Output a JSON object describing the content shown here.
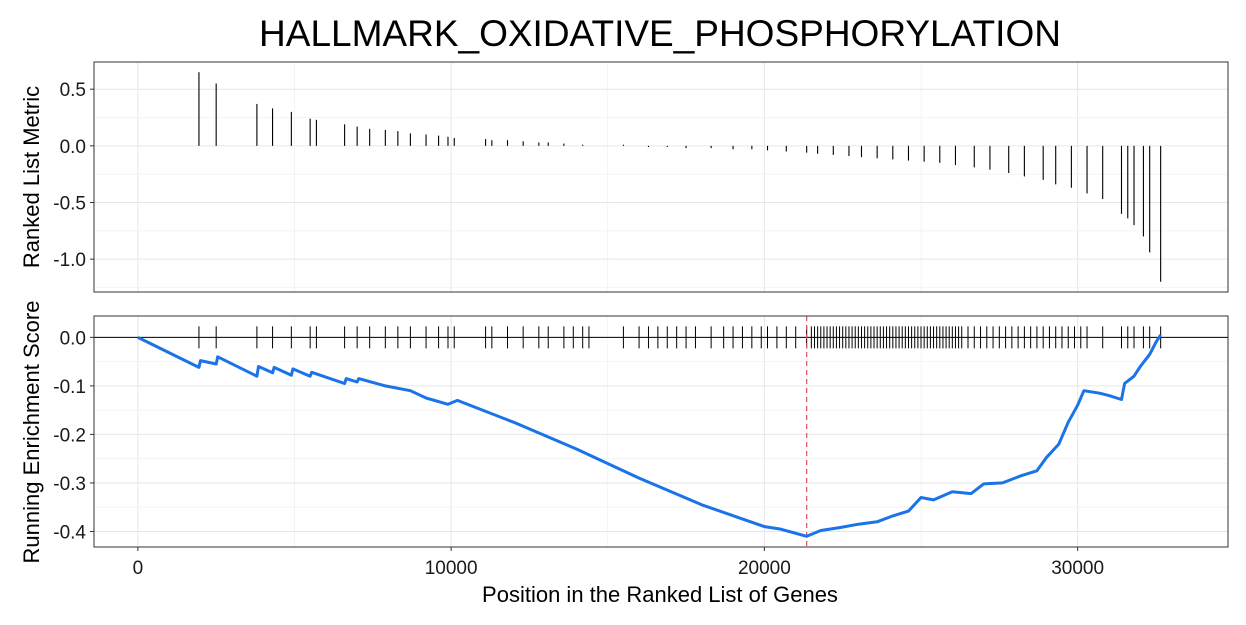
{
  "chart_data": {
    "type": "line",
    "title": "HALLMARK_OXIDATIVE_PHOSPHORYLATION",
    "xlabel": "Position in the Ranked List of Genes",
    "xlim": [
      -1400,
      34800
    ],
    "x_ticks": [
      0,
      10000,
      20000,
      30000
    ],
    "x_tick_labels": [
      "0",
      "10000",
      "20000",
      "30000"
    ],
    "peak_position": 21350,
    "colors": {
      "enrichment_line": "#1a73e8",
      "peak_line": "#d9534f",
      "hits": "#000000",
      "frame": "#333333"
    },
    "panels": [
      {
        "name": "ranked_list_metric",
        "ylabel": "Ranked List Metric",
        "ylim": [
          -1.29,
          0.74
        ],
        "y_ticks": [
          0.5,
          0.0,
          -0.5,
          -1.0
        ],
        "y_tick_labels": [
          "0.5",
          "0.0",
          "-0.5",
          "-1.0"
        ],
        "bars": [
          [
            1950,
            0.65
          ],
          [
            2500,
            0.55
          ],
          [
            3800,
            0.37
          ],
          [
            4300,
            0.33
          ],
          [
            4900,
            0.3
          ],
          [
            5500,
            0.24
          ],
          [
            5700,
            0.23
          ],
          [
            6600,
            0.19
          ],
          [
            7000,
            0.17
          ],
          [
            7400,
            0.15
          ],
          [
            7900,
            0.14
          ],
          [
            8300,
            0.13
          ],
          [
            8700,
            0.11
          ],
          [
            9200,
            0.1
          ],
          [
            9600,
            0.09
          ],
          [
            9900,
            0.08
          ],
          [
            10100,
            0.07
          ],
          [
            11100,
            0.06
          ],
          [
            11300,
            0.05
          ],
          [
            11800,
            0.05
          ],
          [
            12300,
            0.04
          ],
          [
            12800,
            0.03
          ],
          [
            13100,
            0.03
          ],
          [
            13600,
            0.02
          ],
          [
            14200,
            0.01
          ],
          [
            15500,
            0.01
          ],
          [
            16300,
            -0.01
          ],
          [
            16900,
            -0.01
          ],
          [
            17500,
            -0.02
          ],
          [
            18300,
            -0.02
          ],
          [
            19000,
            -0.03
          ],
          [
            19600,
            -0.03
          ],
          [
            20100,
            -0.04
          ],
          [
            20700,
            -0.05
          ],
          [
            21350,
            -0.06
          ],
          [
            21700,
            -0.07
          ],
          [
            22200,
            -0.08
          ],
          [
            22700,
            -0.09
          ],
          [
            23100,
            -0.1
          ],
          [
            23600,
            -0.11
          ],
          [
            24100,
            -0.12
          ],
          [
            24600,
            -0.13
          ],
          [
            25100,
            -0.14
          ],
          [
            25600,
            -0.15
          ],
          [
            26100,
            -0.17
          ],
          [
            26700,
            -0.19
          ],
          [
            27200,
            -0.21
          ],
          [
            27800,
            -0.24
          ],
          [
            28300,
            -0.27
          ],
          [
            28900,
            -0.3
          ],
          [
            29300,
            -0.34
          ],
          [
            29800,
            -0.37
          ],
          [
            30300,
            -0.42
          ],
          [
            30800,
            -0.47
          ],
          [
            31400,
            -0.6
          ],
          [
            31600,
            -0.64
          ],
          [
            31800,
            -0.7
          ],
          [
            32100,
            -0.8
          ],
          [
            32300,
            -0.94
          ],
          [
            32650,
            -1.2
          ]
        ]
      },
      {
        "name": "running_enrichment_score",
        "ylabel": "Running Enrichment Score",
        "ylim": [
          -0.432,
          0.044
        ],
        "y_ticks": [
          0.0,
          -0.1,
          -0.2,
          -0.3,
          -0.4
        ],
        "y_tick_labels": [
          "0.0",
          "-0.1",
          "-0.2",
          "-0.3",
          "-0.4"
        ],
        "line": [
          [
            0,
            0.0
          ],
          [
            1950,
            -0.062
          ],
          [
            2000,
            -0.048
          ],
          [
            2500,
            -0.055
          ],
          [
            2550,
            -0.04
          ],
          [
            3800,
            -0.08
          ],
          [
            3850,
            -0.06
          ],
          [
            4300,
            -0.073
          ],
          [
            4350,
            -0.062
          ],
          [
            4900,
            -0.078
          ],
          [
            4950,
            -0.065
          ],
          [
            5500,
            -0.08
          ],
          [
            5550,
            -0.072
          ],
          [
            6600,
            -0.095
          ],
          [
            6650,
            -0.085
          ],
          [
            7000,
            -0.092
          ],
          [
            7050,
            -0.085
          ],
          [
            7900,
            -0.1
          ],
          [
            8700,
            -0.11
          ],
          [
            9200,
            -0.125
          ],
          [
            9900,
            -0.138
          ],
          [
            10200,
            -0.13
          ],
          [
            12000,
            -0.175
          ],
          [
            14000,
            -0.23
          ],
          [
            16000,
            -0.29
          ],
          [
            18000,
            -0.345
          ],
          [
            20000,
            -0.39
          ],
          [
            20500,
            -0.395
          ],
          [
            21350,
            -0.41
          ],
          [
            21800,
            -0.398
          ],
          [
            22400,
            -0.392
          ],
          [
            23000,
            -0.385
          ],
          [
            23600,
            -0.38
          ],
          [
            24100,
            -0.368
          ],
          [
            24600,
            -0.358
          ],
          [
            25000,
            -0.33
          ],
          [
            25400,
            -0.335
          ],
          [
            26000,
            -0.318
          ],
          [
            26600,
            -0.322
          ],
          [
            27000,
            -0.302
          ],
          [
            27600,
            -0.3
          ],
          [
            28200,
            -0.285
          ],
          [
            28700,
            -0.275
          ],
          [
            29000,
            -0.248
          ],
          [
            29400,
            -0.22
          ],
          [
            29700,
            -0.175
          ],
          [
            30000,
            -0.14
          ],
          [
            30200,
            -0.11
          ],
          [
            30700,
            -0.115
          ],
          [
            31000,
            -0.12
          ],
          [
            31400,
            -0.128
          ],
          [
            31500,
            -0.095
          ],
          [
            31800,
            -0.08
          ],
          [
            32000,
            -0.06
          ],
          [
            32300,
            -0.035
          ],
          [
            32500,
            -0.01
          ],
          [
            32650,
            0.005
          ]
        ],
        "hits": [
          1950,
          2500,
          3800,
          4300,
          4900,
          5500,
          5700,
          6600,
          7000,
          7400,
          7900,
          8300,
          8700,
          9200,
          9600,
          9900,
          10100,
          11100,
          11300,
          11800,
          12300,
          12800,
          13100,
          13600,
          13900,
          14200,
          14400,
          15500,
          16000,
          16300,
          16600,
          16900,
          17200,
          17500,
          17800,
          18300,
          18700,
          19000,
          19300,
          19600,
          19900,
          20100,
          20400,
          20700,
          21000,
          21350,
          21500,
          21600,
          21700,
          21800,
          21900,
          22000,
          22100,
          22200,
          22300,
          22400,
          22500,
          22600,
          22700,
          22800,
          22900,
          23000,
          23100,
          23200,
          23300,
          23400,
          23500,
          23600,
          23700,
          23800,
          23900,
          24000,
          24100,
          24200,
          24300,
          24400,
          24500,
          24600,
          24700,
          24800,
          24900,
          25000,
          25100,
          25200,
          25300,
          25400,
          25500,
          25600,
          25700,
          25800,
          25900,
          26000,
          26100,
          26200,
          26300,
          26500,
          26700,
          26900,
          27100,
          27300,
          27500,
          27700,
          27900,
          28100,
          28300,
          28500,
          28700,
          28900,
          29100,
          29300,
          29500,
          29700,
          29900,
          30100,
          30300,
          30800,
          31400,
          31600,
          31800,
          32100,
          32300,
          32650
        ]
      }
    ]
  }
}
